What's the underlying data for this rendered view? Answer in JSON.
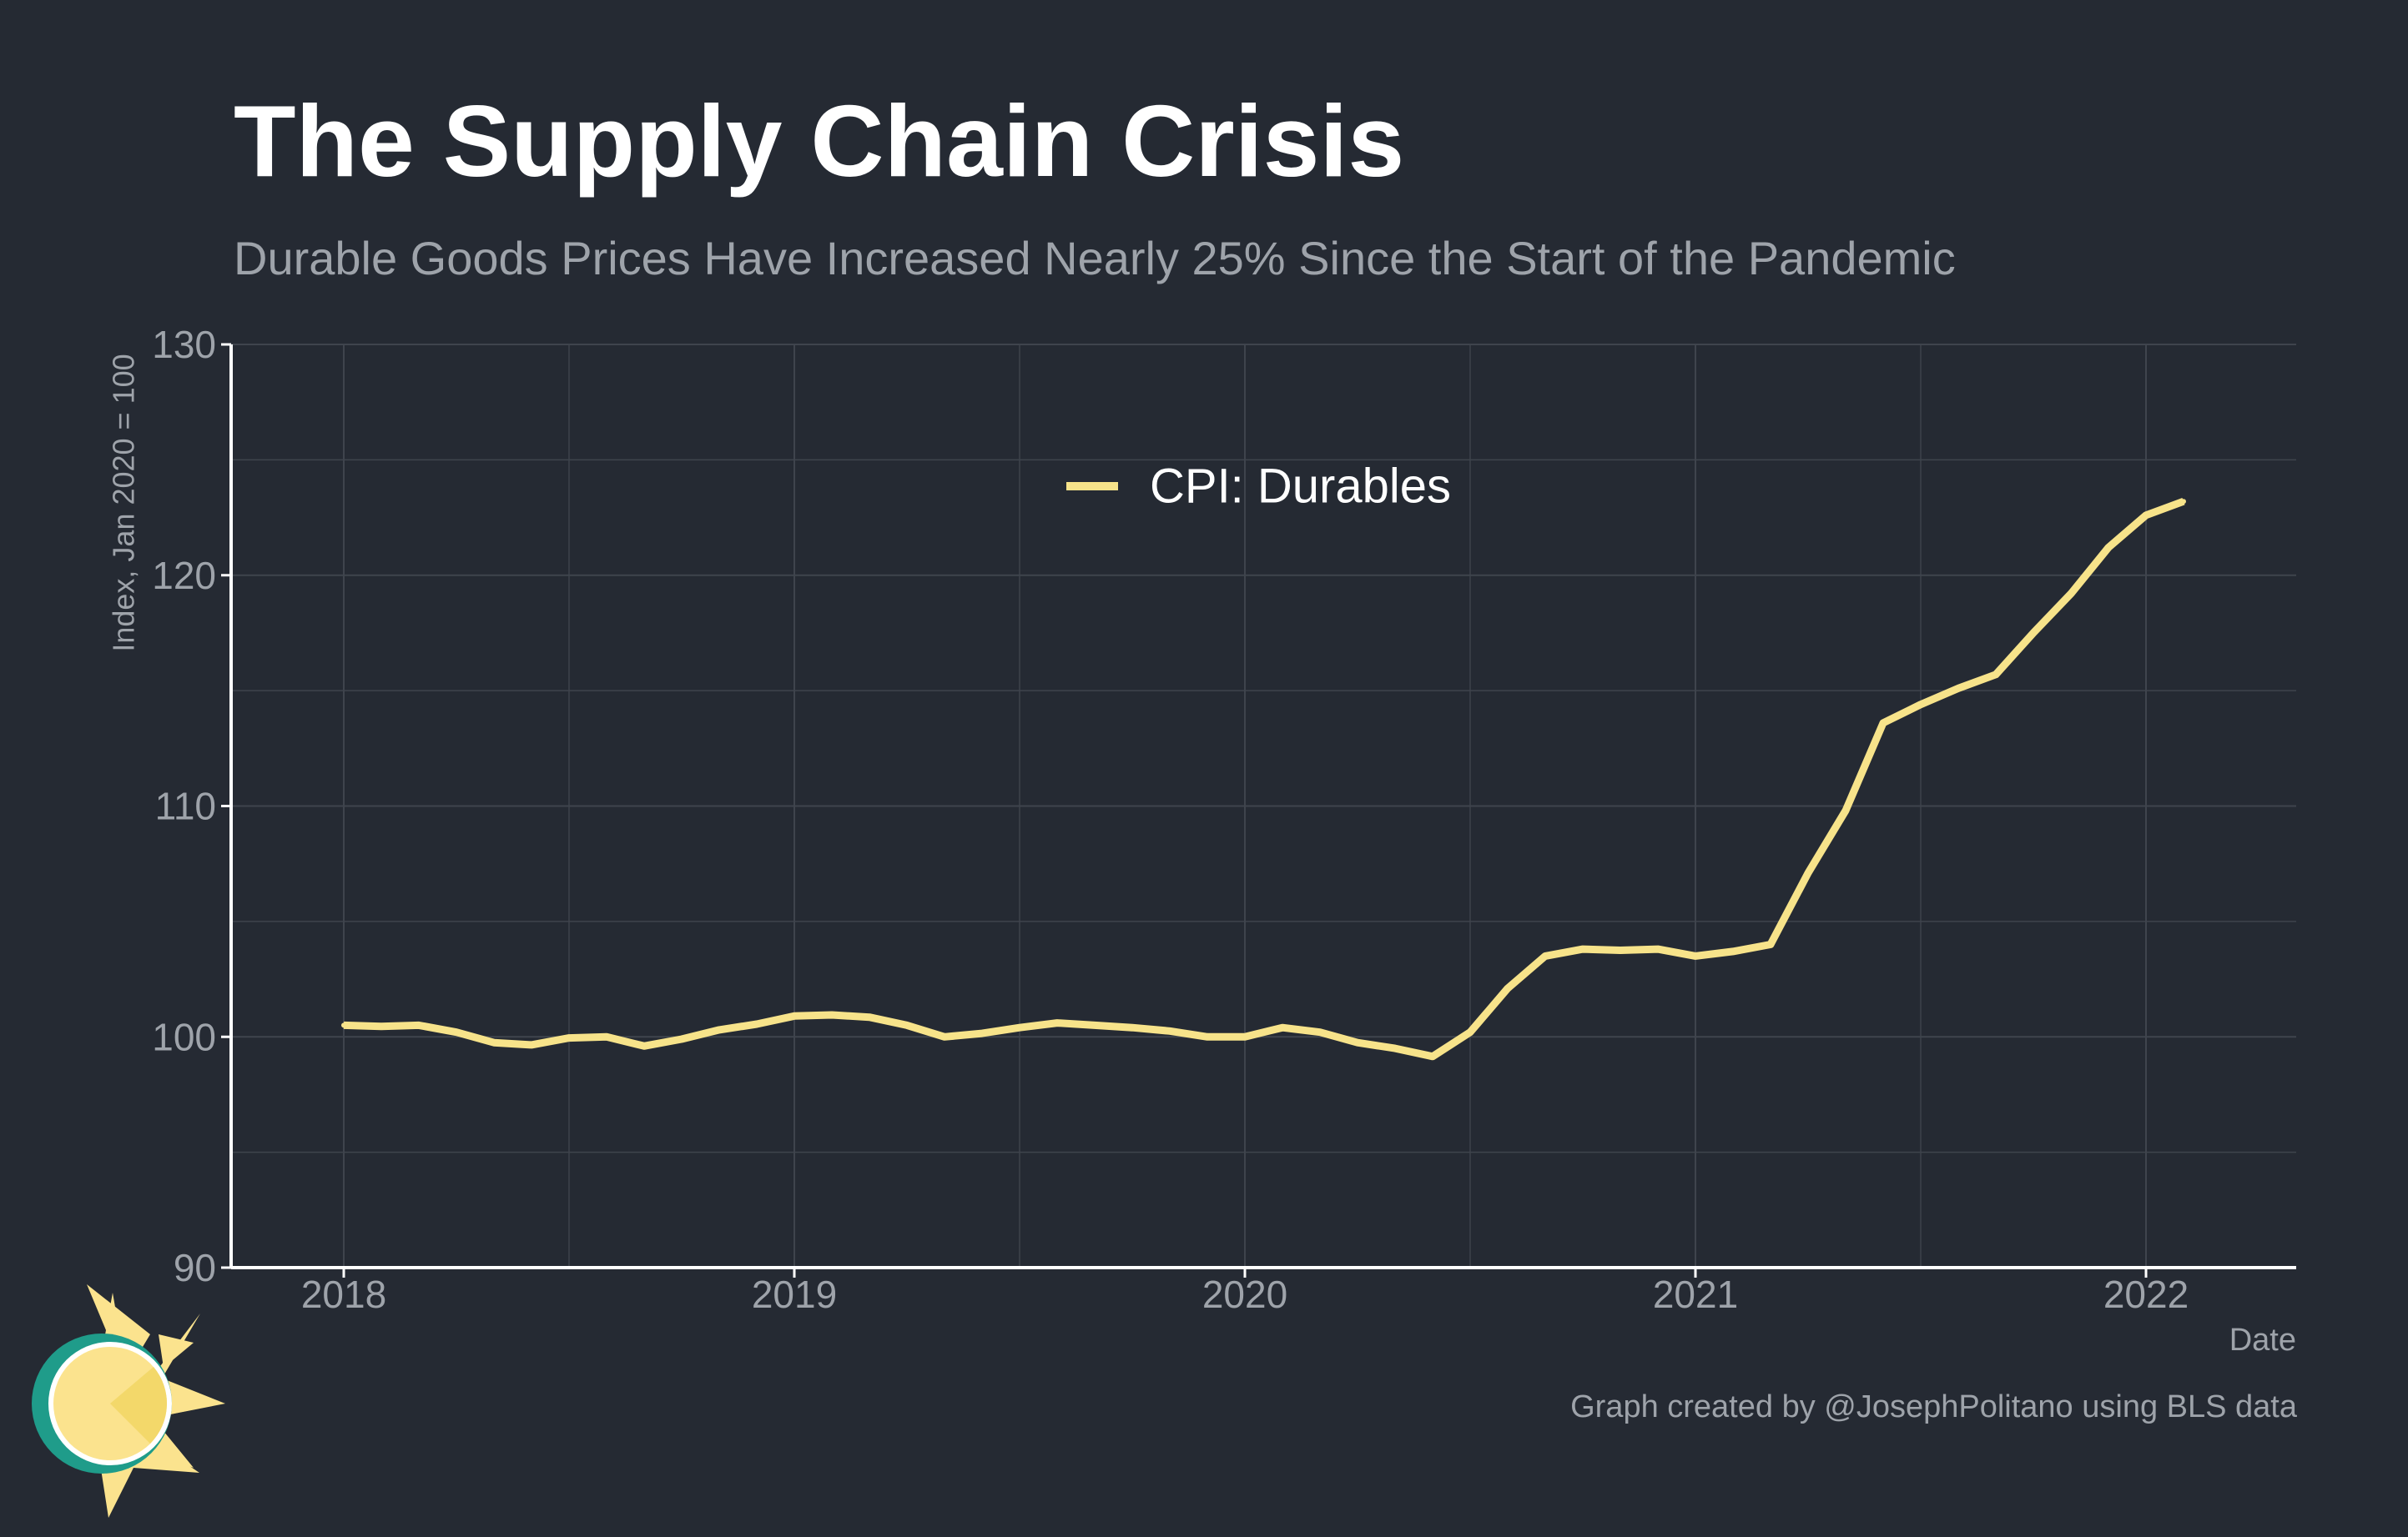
{
  "header": {
    "title": "The Supply Chain Crisis",
    "subtitle": "Durable Goods Prices Have Increased Nearly 25% Since the Start of the Pandemic"
  },
  "caption": "Graph created by @JosephPolitano using BLS data",
  "logo": {
    "icon": "sun-logo-icon"
  },
  "colors": {
    "background": "#252a33",
    "grid": "#3f444d",
    "axis": "#ffffff",
    "tick_text": "#9ea3aa",
    "series": "#f7e38a",
    "logo_teal": "#1f9c8a",
    "logo_yellow": "#fbe38e"
  },
  "chart_data": {
    "type": "line",
    "title": "The Supply Chain Crisis",
    "subtitle": "Durable Goods Prices Have Increased Nearly 25% Since the Start of the Pandemic",
    "xlabel": "Date",
    "ylabel": "Index, Jan 2020 = 100",
    "ylim": [
      90,
      130
    ],
    "xlim": [
      "2017-10",
      "2022-05"
    ],
    "yticks": [
      90,
      100,
      110,
      120,
      130
    ],
    "xticks": [
      "2018",
      "2019",
      "2020",
      "2021",
      "2022"
    ],
    "grid": true,
    "legend_position": "top-center",
    "series": [
      {
        "name": "CPI: Durables",
        "color": "#f7e38a",
        "x": [
          "2018-01",
          "2018-02",
          "2018-03",
          "2018-04",
          "2018-05",
          "2018-06",
          "2018-07",
          "2018-08",
          "2018-09",
          "2018-10",
          "2018-11",
          "2018-12",
          "2019-01",
          "2019-02",
          "2019-03",
          "2019-04",
          "2019-05",
          "2019-06",
          "2019-07",
          "2019-08",
          "2019-09",
          "2019-10",
          "2019-11",
          "2019-12",
          "2020-01",
          "2020-02",
          "2020-03",
          "2020-04",
          "2020-05",
          "2020-06",
          "2020-07",
          "2020-08",
          "2020-09",
          "2020-10",
          "2020-11",
          "2020-12",
          "2021-01",
          "2021-02",
          "2021-03",
          "2021-04",
          "2021-05",
          "2021-06",
          "2021-07",
          "2021-08",
          "2021-09",
          "2021-10",
          "2021-11",
          "2021-12",
          "2022-01",
          "2022-02"
        ],
        "values": [
          100.5,
          100.45,
          100.5,
          100.2,
          99.75,
          99.65,
          99.95,
          100.0,
          99.6,
          99.9,
          100.3,
          100.55,
          100.9,
          100.95,
          100.85,
          100.5,
          100.0,
          100.15,
          100.4,
          100.6,
          100.5,
          100.4,
          100.25,
          100.0,
          100.0,
          100.4,
          100.2,
          99.75,
          99.5,
          99.15,
          100.2,
          102.1,
          103.5,
          103.8,
          103.75,
          103.8,
          103.5,
          103.7,
          104.0,
          107.1,
          109.8,
          113.6,
          114.4,
          115.1,
          115.7,
          117.5,
          119.2,
          121.2,
          122.6,
          123.2
        ]
      }
    ]
  }
}
